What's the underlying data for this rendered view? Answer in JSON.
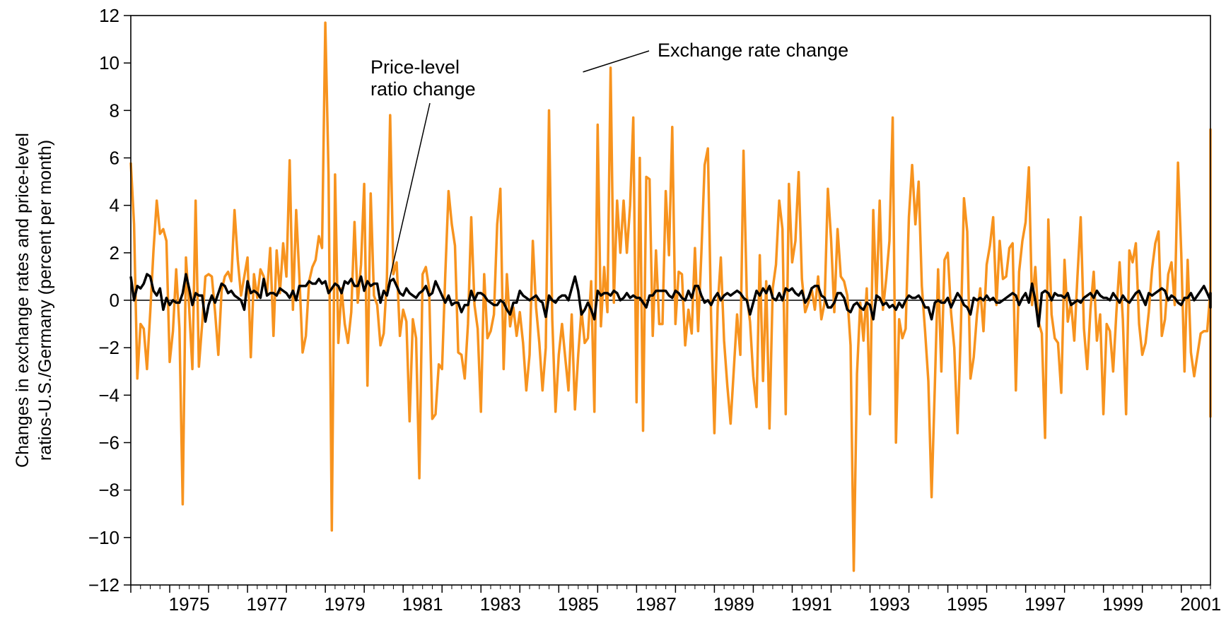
{
  "chart_data": {
    "type": "line",
    "title": "",
    "xlabel": "",
    "ylabel_lines": [
      "Changes in exchange rates and price-level",
      "ratios-U.S./Germany (percent per month)"
    ],
    "ylim": [
      -12,
      12
    ],
    "xlim": [
      1974.0,
      2001.75
    ],
    "yticks": [
      12,
      10,
      8,
      6,
      4,
      2,
      0,
      -2,
      -4,
      -6,
      -8,
      -10,
      -12
    ],
    "ytick_labels": [
      "12",
      "10",
      "8",
      "6",
      "4",
      "2",
      "0",
      "−2",
      "−4",
      "−6",
      "−8",
      "−10",
      "−12"
    ],
    "xtick_labels": [
      "1975",
      "1977",
      "1979",
      "1981",
      "1983",
      "1985",
      "1987",
      "1989",
      "1991",
      "1993",
      "1995",
      "1997",
      "1999",
      "2001"
    ],
    "xtick_years": [
      1975,
      1977,
      1979,
      1981,
      1983,
      1985,
      1987,
      1989,
      1991,
      1993,
      1995,
      1997,
      1999,
      2001
    ],
    "grid": false,
    "legend": "none",
    "annotations": [
      {
        "text_lines": [
          "Exchange rate change"
        ],
        "points_to": [
          1985.55,
          9.8
        ]
      },
      {
        "text_lines": [
          "Price-level",
          "ratio change"
        ],
        "points_to": [
          1980.6,
          0.4
        ]
      }
    ],
    "series": [
      {
        "key": "exchange",
        "color": "#F7931E",
        "x_start": 1974.0,
        "x_step": 0.08333,
        "values": [
          5.8,
          3.2,
          -3.3,
          -1.0,
          -1.2,
          -2.9,
          -0.5,
          2.1,
          4.2,
          2.8,
          3.0,
          2.5,
          -2.6,
          -1.3,
          1.3,
          -1.2,
          -8.6,
          1.8,
          -0.3,
          -2.9,
          4.2,
          -2.8,
          -1.0,
          1.0,
          1.1,
          1.0,
          -0.5,
          -2.3,
          0.4,
          1.0,
          1.2,
          0.8,
          3.8,
          1.7,
          0.2,
          1.0,
          1.8,
          -2.4,
          1.1,
          0.1,
          1.3,
          1.0,
          0.3,
          2.2,
          -1.5,
          2.1,
          0.3,
          2.4,
          1.0,
          5.9,
          -0.4,
          3.8,
          1.0,
          -2.2,
          -1.5,
          0.8,
          1.4,
          1.7,
          2.7,
          2.2,
          11.7,
          5.3,
          -9.7,
          5.3,
          -1.8,
          0.5,
          -1.0,
          -1.8,
          -0.5,
          3.3,
          -0.1,
          1.5,
          4.9,
          -3.6,
          4.5,
          0.2,
          -0.2,
          -1.9,
          -1.4,
          0.9,
          7.8,
          1.1,
          1.6,
          -1.5,
          -0.4,
          -0.9,
          -5.1,
          -0.8,
          -1.6,
          -7.5,
          1.1,
          1.4,
          0.5,
          -5.0,
          -4.8,
          -2.7,
          -2.9,
          1.1,
          4.6,
          3.2,
          2.3,
          -2.2,
          -2.3,
          -3.3,
          -1.0,
          3.5,
          -0.2,
          -1.2,
          -4.7,
          1.1,
          -1.6,
          -1.3,
          -0.6,
          3.2,
          4.7,
          -2.9,
          1.1,
          -1.1,
          -0.3,
          -1.5,
          -0.5,
          -1.8,
          -3.8,
          -2.3,
          2.5,
          -0.3,
          -1.8,
          -3.8,
          -2.0,
          8.0,
          -0.8,
          -4.7,
          -2.3,
          -1.0,
          -2.4,
          -3.8,
          -0.6,
          -4.6,
          -2.3,
          -0.4,
          -1.8,
          -1.6,
          0.8,
          -4.7,
          7.4,
          -1.1,
          1.4,
          -0.5,
          9.8,
          -0.1,
          4.2,
          2.0,
          4.2,
          2.0,
          4.0,
          7.7,
          -4.3,
          6.0,
          -5.5,
          5.2,
          5.1,
          -1.5,
          2.1,
          -1.0,
          -1.0,
          4.6,
          1.9,
          7.3,
          -1.0,
          1.2,
          1.1,
          -1.9,
          -0.4,
          -1.4,
          2.2,
          -1.3,
          2.0,
          5.7,
          6.4,
          -0.8,
          -5.6,
          -0.3,
          1.8,
          -1.7,
          -3.6,
          -5.2,
          -2.9,
          -0.6,
          -2.3,
          6.3,
          0.2,
          -0.9,
          -3.2,
          -4.5,
          1.9,
          -3.4,
          0.8,
          -5.4,
          0.5,
          1.5,
          4.2,
          3.0,
          -4.8,
          4.9,
          1.6,
          2.5,
          5.4,
          0.9,
          -0.5,
          -0.1,
          0.5,
          -0.4,
          1.0,
          -0.8,
          -0.1,
          4.7,
          2.6,
          -0.5,
          3.0,
          1.0,
          0.8,
          0.2,
          -1.9,
          -11.4,
          -3.1,
          -0.1,
          -1.7,
          0.5,
          -4.8,
          3.8,
          0.0,
          4.2,
          -0.4,
          0.9,
          2.5,
          7.7,
          -6.0,
          -0.8,
          -1.6,
          -1.2,
          3.5,
          5.7,
          3.2,
          5.0,
          0.6,
          -1.3,
          -3.4,
          -8.3,
          -3.6,
          1.3,
          -3.0,
          1.7,
          2.0,
          -0.5,
          -2.0,
          -5.6,
          -1.3,
          4.3,
          2.9,
          -3.3,
          -2.4,
          -0.6,
          0.5,
          -1.3,
          1.5,
          2.3,
          3.5,
          -0.2,
          2.5,
          0.9,
          1.0,
          2.2,
          2.4,
          -3.8,
          1.2,
          2.5,
          3.3,
          5.6,
          -0.2,
          1.4,
          -0.9,
          -1.4,
          -5.8,
          3.4,
          -0.6,
          -1.6,
          -1.8,
          -3.9,
          1.7,
          -0.9,
          -0.1,
          -1.7,
          1.0,
          3.5,
          -1.2,
          -2.9,
          -0.4,
          1.2,
          -1.7,
          -0.6,
          -4.8,
          -1.0,
          -1.3,
          -3.0,
          -0.5,
          1.6,
          -0.8,
          -4.8,
          2.1,
          1.6,
          2.4,
          -1.0,
          -2.3,
          -1.8,
          -0.5,
          1.3,
          2.4,
          2.9,
          -1.5,
          -0.8,
          1.1,
          1.6,
          -0.2,
          5.8,
          2.0,
          -3.0,
          1.7,
          -2.2,
          -3.2,
          -2.3,
          -1.4,
          -1.3,
          -1.3,
          0.4,
          3.6,
          -0.7,
          0.9,
          -1.6,
          -3.4,
          -1.3,
          -1.6,
          -0.2,
          -2.5,
          -0.9,
          -1.5,
          -4.9,
          2.4,
          2.7,
          -3.2,
          -3.5,
          -1.6,
          -3.9,
          0.3,
          3.7,
          7.2,
          -0.2,
          -0.7,
          -4.5,
          -1.4,
          0.6,
          -4.4
        ]
      },
      {
        "key": "price",
        "color": "#000000",
        "x_start": 1974.0,
        "x_step": 0.08333,
        "values": [
          1.0,
          0.0,
          0.6,
          0.5,
          0.7,
          1.1,
          1.0,
          0.4,
          0.2,
          0.5,
          -0.4,
          0.1,
          -0.2,
          0.0,
          -0.1,
          -0.1,
          0.3,
          1.1,
          0.5,
          -0.2,
          0.3,
          0.2,
          0.2,
          -0.9,
          -0.2,
          0.2,
          -0.1,
          0.3,
          0.7,
          0.6,
          0.3,
          0.4,
          0.2,
          0.1,
          0.0,
          -0.4,
          0.8,
          0.3,
          0.4,
          0.3,
          0.1,
          0.9,
          0.2,
          0.3,
          0.3,
          0.2,
          0.5,
          0.4,
          0.3,
          0.1,
          0.4,
          0.0,
          0.6,
          0.6,
          0.6,
          0.8,
          0.7,
          0.7,
          0.9,
          0.7,
          0.8,
          0.3,
          0.5,
          0.7,
          0.6,
          0.3,
          0.8,
          0.7,
          0.9,
          0.6,
          0.6,
          1.0,
          0.4,
          0.8,
          0.6,
          0.7,
          0.7,
          -0.1,
          0.4,
          0.2,
          0.8,
          0.9,
          0.6,
          0.3,
          0.2,
          0.5,
          0.3,
          0.2,
          0.1,
          0.3,
          0.4,
          0.6,
          0.2,
          0.3,
          0.8,
          0.5,
          0.2,
          -0.1,
          0.2,
          -0.2,
          -0.1,
          -0.1,
          -0.5,
          -0.2,
          -0.2,
          0.4,
          0.0,
          0.3,
          0.3,
          0.2,
          0.0,
          -0.1,
          -0.2,
          -0.2,
          0.0,
          -0.1,
          -0.4,
          -0.6,
          -0.1,
          -0.1,
          0.4,
          0.2,
          0.1,
          0.0,
          0.1,
          0.2,
          0.0,
          -0.1,
          -0.7,
          0.2,
          0.0,
          -0.1,
          0.1,
          0.2,
          0.2,
          0.0,
          0.5,
          1.0,
          0.4,
          -0.6,
          -0.4,
          -0.1,
          -0.4,
          -0.8,
          0.4,
          0.2,
          0.3,
          0.3,
          0.2,
          0.4,
          0.3,
          0.0,
          0.1,
          0.3,
          0.1,
          0.2,
          0.1,
          0.1,
          -0.1,
          -0.3,
          0.2,
          0.2,
          0.4,
          0.4,
          0.4,
          0.4,
          0.2,
          0.1,
          0.4,
          0.3,
          0.1,
          0.0,
          0.4,
          0.1,
          0.6,
          0.6,
          0.2,
          -0.1,
          0.0,
          -0.2,
          0.1,
          0.3,
          0.0,
          0.2,
          0.3,
          0.2,
          0.3,
          0.4,
          0.3,
          0.1,
          0.0,
          -0.6,
          -0.1,
          0.4,
          0.2,
          0.5,
          0.3,
          0.6,
          0.1,
          0.0,
          0.3,
          0.0,
          0.5,
          0.4,
          0.5,
          0.3,
          0.2,
          0.4,
          -0.1,
          0.1,
          0.5,
          0.6,
          0.6,
          0.2,
          0.1,
          -0.3,
          -0.3,
          -0.1,
          0.3,
          0.3,
          0.1,
          -0.4,
          -0.5,
          -0.2,
          -0.1,
          -0.3,
          -0.4,
          -0.1,
          -0.2,
          -0.8,
          0.2,
          0.1,
          -0.2,
          -0.1,
          -0.3,
          -0.2,
          -0.4,
          -0.1,
          -0.3,
          0.0,
          0.2,
          0.1,
          0.1,
          0.2,
          0.0,
          -0.3,
          -0.3,
          -0.8,
          -0.1,
          0.0,
          -0.1,
          -0.1,
          0.1,
          -0.3,
          0.0,
          0.3,
          0.1,
          -0.2,
          -0.3,
          -0.6,
          0.1,
          0.0,
          0.1,
          0.0,
          0.2,
          0.0,
          0.1,
          -0.1,
          -0.1,
          0.0,
          0.1,
          0.2,
          0.3,
          0.2,
          -0.2,
          0.1,
          0.3,
          -0.1,
          0.7,
          0.0,
          -1.1,
          0.3,
          0.4,
          0.3,
          0.0,
          0.3,
          0.2,
          0.2,
          0.1,
          0.3,
          -0.2,
          -0.1,
          0.0,
          -0.1,
          0.1,
          0.2,
          0.3,
          0.1,
          0.4,
          0.2,
          0.1,
          0.1,
          0.0,
          0.3,
          0.1,
          -0.1,
          0.2,
          0.0,
          -0.1,
          0.1,
          0.3,
          0.4,
          0.1,
          -0.2,
          0.3,
          0.2,
          0.3,
          0.4,
          0.5,
          0.4,
          0.0,
          0.2,
          0.1,
          -0.1,
          -0.2,
          0.1,
          0.1,
          0.3,
          0.0,
          0.2,
          0.4,
          0.6,
          0.3,
          0.0,
          0.1,
          0.2,
          0.3,
          -0.1,
          0.1,
          -0.1,
          0.1,
          0.0,
          -0.2,
          0.1,
          0.0,
          0.2,
          -0.3,
          0.0,
          -0.1,
          0.2,
          -0.1,
          0.1,
          0.2,
          -0.2,
          0.0
        ]
      }
    ]
  }
}
